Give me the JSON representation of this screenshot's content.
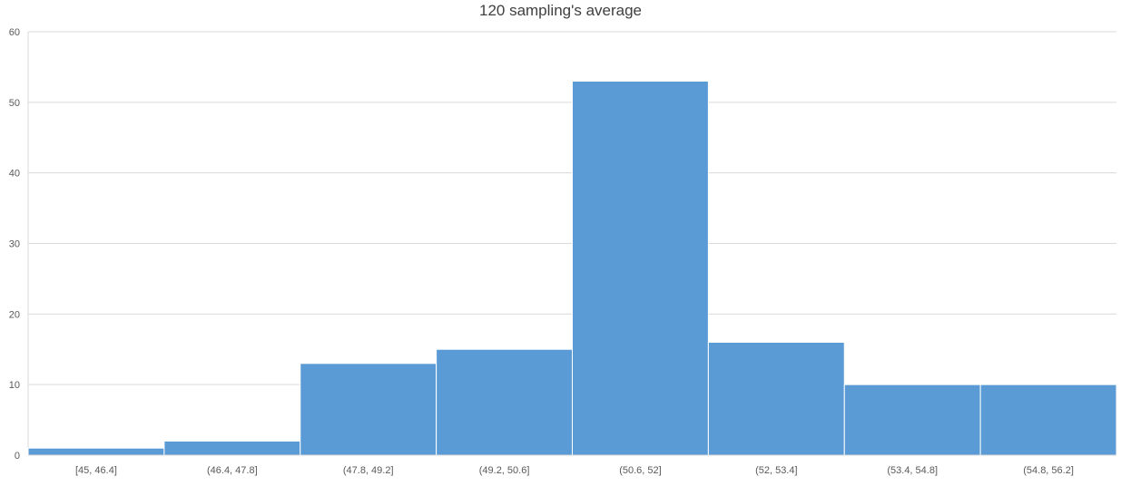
{
  "chart_data": {
    "type": "bar",
    "title": "120 sampling's average",
    "categories": [
      "[45, 46.4]",
      "(46.4, 47.8]",
      "(47.8, 49.2]",
      "(49.2, 50.6]",
      "(50.6, 52]",
      "(52, 53.4]",
      "(53.4, 54.8]",
      "(54.8, 56.2]"
    ],
    "values": [
      1,
      2,
      13,
      15,
      53,
      16,
      10,
      10
    ],
    "ylim": [
      0,
      60
    ],
    "yticks": [
      0,
      10,
      20,
      30,
      40,
      50,
      60
    ],
    "xlabel": "",
    "ylabel": "",
    "grid": true,
    "bar_color": "#5b9bd5",
    "grid_color": "#d9d9d9",
    "text_color": "#595959"
  }
}
